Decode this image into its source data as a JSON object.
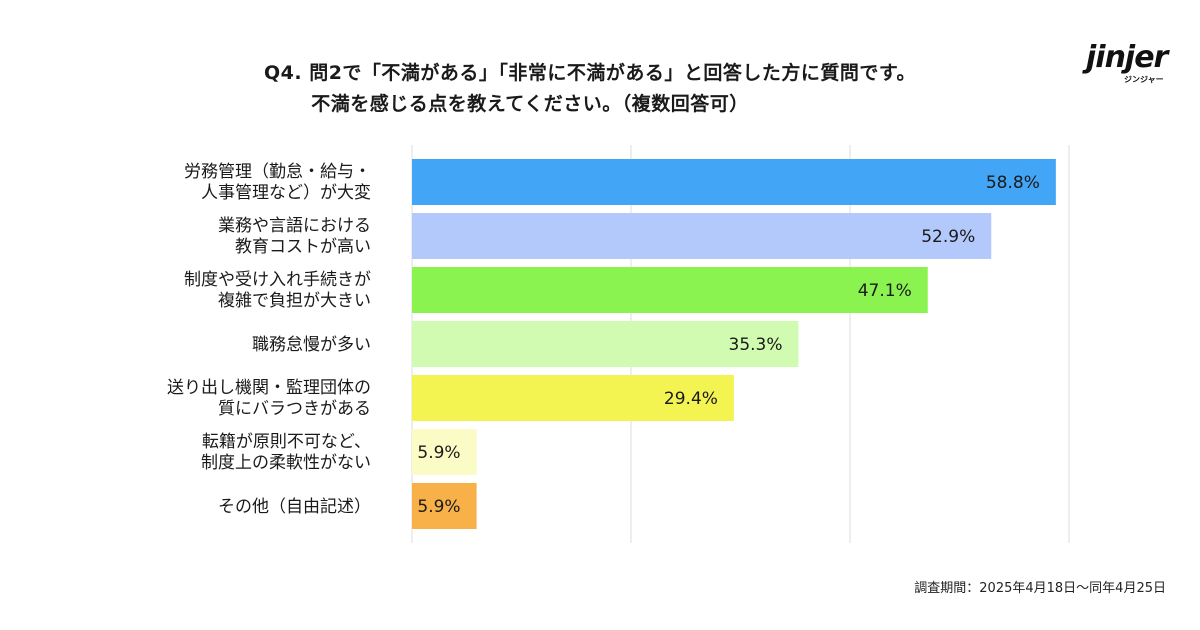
{
  "title_line1": "Q4. 問2で「不満がある」「非常に不満がある」と回答した方に質問です。",
  "title_line2": "不満を感じる点を教えてください。（複数回答可）",
  "logo": {
    "word": "jinjer",
    "sub": "ジンジャー",
    "icon_name": "jinjer-logo"
  },
  "footer": "調査期間：2025年4月18日〜同年4月25日",
  "chart_data": {
    "type": "bar",
    "orientation": "horizontal",
    "xlim": [
      0,
      60
    ],
    "grid": true,
    "categories": [
      [
        "労務管理（勤怠・給与・",
        "人事管理など）が大変"
      ],
      [
        "業務や言語における",
        "教育コストが高い"
      ],
      [
        "制度や受け入れ手続きが",
        "複雑で負担が大きい"
      ],
      [
        "職務怠慢が多い"
      ],
      [
        "送り出し機関・監理団体の",
        "質にバラつきがある"
      ],
      [
        "転籍が原則不可など、",
        "制度上の柔軟性がない"
      ],
      [
        "その他（自由記述）"
      ]
    ],
    "values": [
      58.8,
      52.9,
      47.1,
      35.3,
      29.4,
      5.9,
      5.9
    ],
    "value_labels": [
      "58.8%",
      "52.9%",
      "47.1%",
      "35.3%",
      "29.4%",
      "5.9%",
      "5.9%"
    ],
    "colors": [
      "#42a5f5",
      "#b3c8fb",
      "#8af34f",
      "#d1fbb0",
      "#f3f452",
      "#fbfbc6",
      "#f8b049"
    ]
  }
}
